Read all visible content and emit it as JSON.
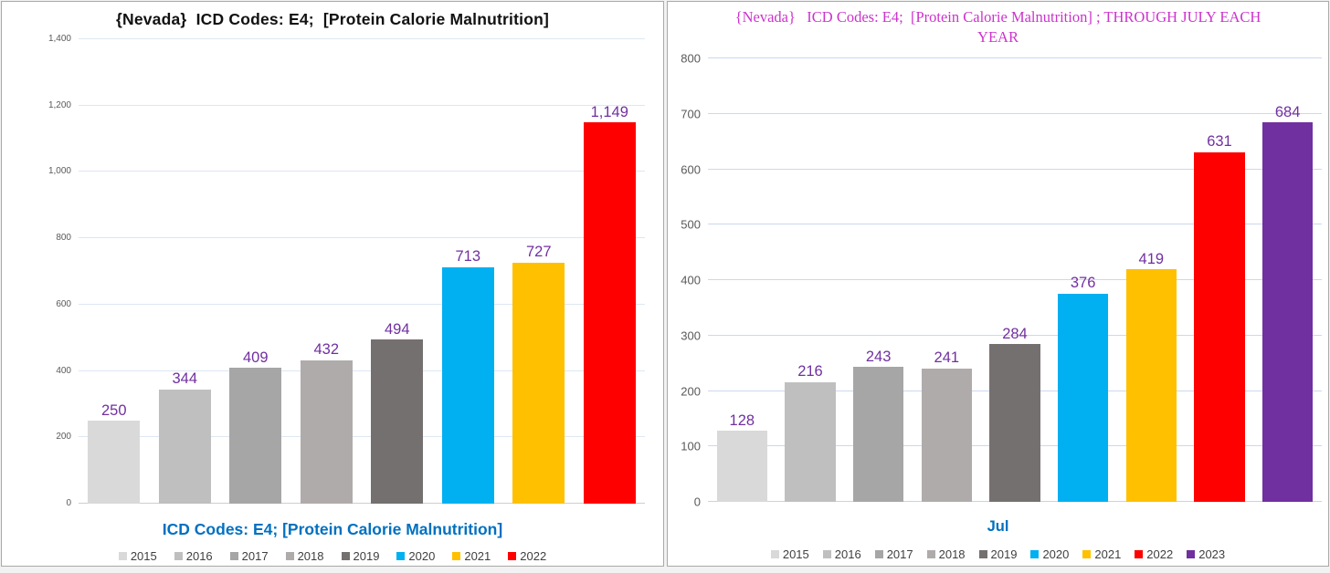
{
  "page_background": "#ffffff",
  "chart_data": [
    {
      "type": "bar",
      "title": "{Nevada}  ICD Codes: E4;  [Protein Calorie Malnutrition]",
      "title_color": "#111111",
      "xlabel": "ICD Codes: E4;  [Protein Calorie Malnutrition]",
      "xlabel_color": "#0070C0",
      "categories": [
        "2015",
        "2016",
        "2017",
        "2018",
        "2019",
        "2020",
        "2021",
        "2022"
      ],
      "values": [
        250,
        344,
        409,
        432,
        494,
        713,
        727,
        1149
      ],
      "value_labels": [
        "250",
        "344",
        "409",
        "432",
        "494",
        "713",
        "727",
        "1,149"
      ],
      "colors": [
        "#D9D9D9",
        "#BFBFBF",
        "#A6A6A6",
        "#B0ABAB",
        "#757070",
        "#00B0F0",
        "#FFC000",
        "#FE0000"
      ],
      "ylim": [
        0,
        1400
      ],
      "ytick_step": 200,
      "grid": true,
      "legend_position": "bottom",
      "value_label_color": "#7030A0",
      "tick_label_color": "#595959",
      "gridline_color": "#dde7f2",
      "axis_line_color": "#cfcfcf"
    },
    {
      "type": "bar",
      "title": "{Nevada}   ICD Codes: E4;  [Protein Calorie Malnutrition] ; THROUGH JULY EACH YEAR",
      "title_color": "#CC33CC",
      "xlabel": "Jul",
      "xlabel_color": "#0070C0",
      "categories": [
        "2015",
        "2016",
        "2017",
        "2018",
        "2019",
        "2020",
        "2021",
        "2022",
        "2023"
      ],
      "values": [
        128,
        216,
        243,
        241,
        284,
        376,
        419,
        631,
        684
      ],
      "value_labels": [
        "128",
        "216",
        "243",
        "241",
        "284",
        "376",
        "419",
        "631",
        "684"
      ],
      "colors": [
        "#D9D9D9",
        "#BFBFBF",
        "#A6A6A6",
        "#B0ABAB",
        "#757070",
        "#00B0F0",
        "#FFC000",
        "#FE0000",
        "#7030A0"
      ],
      "ylim": [
        0,
        800
      ],
      "ytick_step": 100,
      "grid": true,
      "legend_position": "bottom",
      "value_label_color": "#7030A0",
      "tick_label_color": "#595959",
      "gridline_color": "#ccd8ee",
      "axis_line_color": "#c8d3e8"
    }
  ]
}
